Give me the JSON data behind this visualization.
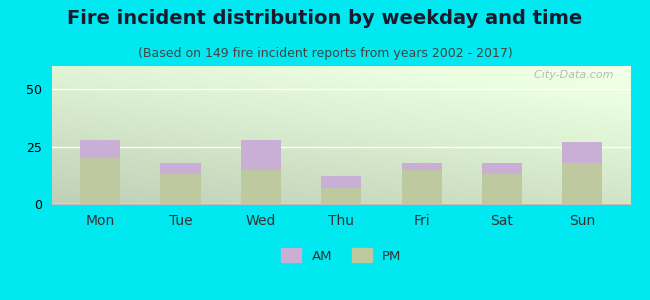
{
  "title": "Fire incident distribution by weekday and time",
  "subtitle": "(Based on 149 fire incident reports from years 2002 - 2017)",
  "days": [
    "Mon",
    "Tue",
    "Wed",
    "Thu",
    "Fri",
    "Sat",
    "Sun"
  ],
  "pm_values": [
    20,
    13,
    15,
    7,
    15,
    13,
    18
  ],
  "am_values": [
    8,
    5,
    13,
    5,
    3,
    5,
    9
  ],
  "am_color": "#c9aed6",
  "pm_color": "#bec9a0",
  "background_outer": "#00e8f0",
  "ylim": [
    0,
    60
  ],
  "yticks": [
    0,
    25,
    50
  ],
  "bar_width": 0.5,
  "title_fontsize": 14,
  "subtitle_fontsize": 9,
  "watermark": "  City-Data.com"
}
